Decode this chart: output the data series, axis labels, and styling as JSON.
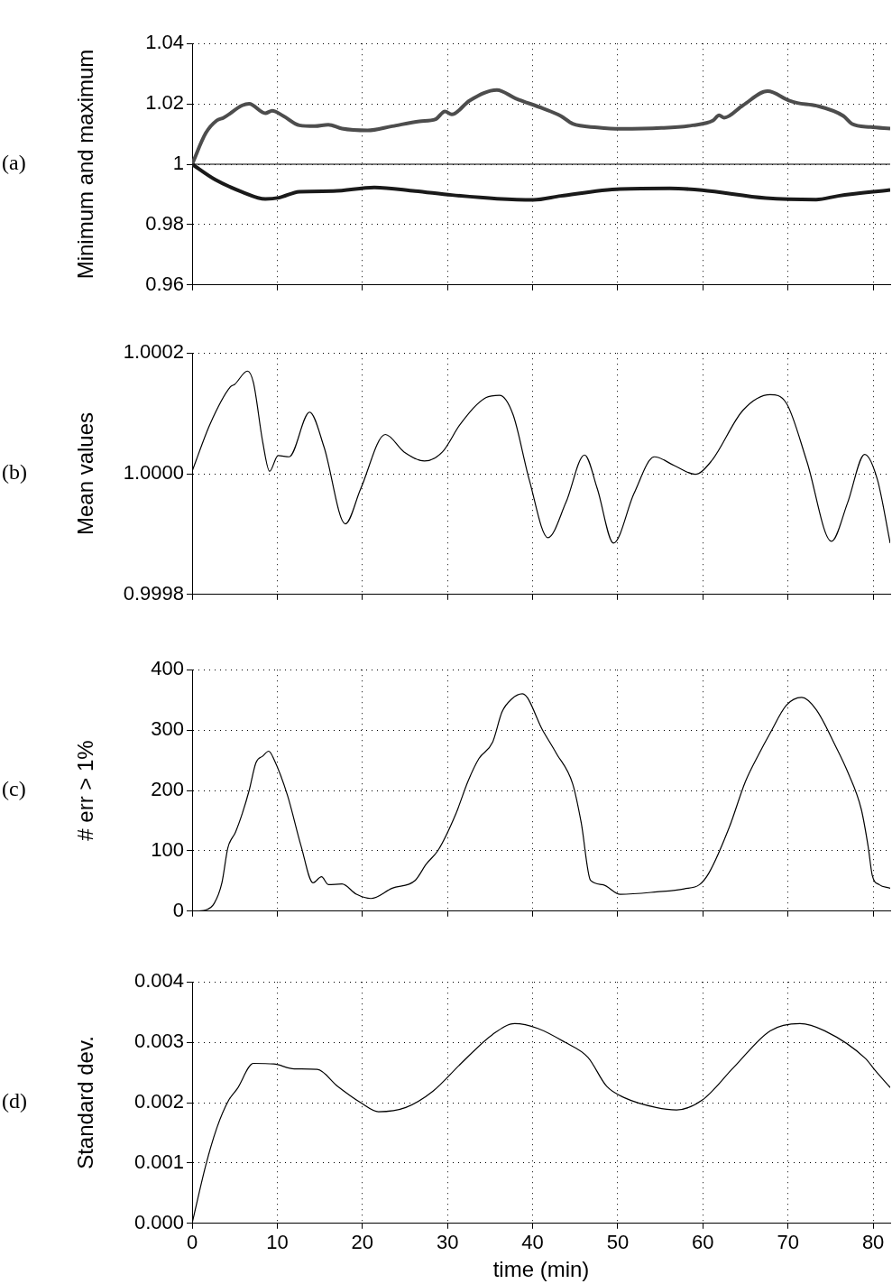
{
  "chart_data": [
    {
      "type": "line",
      "ylabel": "Minimum and maximum",
      "annotations": [
        "(a)"
      ],
      "xlim": [
        0,
        82
      ],
      "xticks": [
        0,
        10,
        20,
        30,
        40,
        50,
        60,
        70,
        80
      ],
      "ylim": [
        0.96,
        1.04
      ],
      "yticks": [
        0.96,
        0.98,
        1,
        1.02,
        1.04
      ],
      "grid": true,
      "tick_labels": "y",
      "ref_lines": [
        {
          "axis": "y",
          "value": 1,
          "color": "#000000"
        }
      ],
      "series": [
        {
          "color": "#4d4d4d",
          "x": [
            0,
            1.6,
            2.9,
            3.7,
            5.9,
            6.7,
            8.6,
            9.4,
            10.7,
            12.6,
            14.4,
            16.0,
            17.6,
            20.6,
            23.5,
            26.7,
            28.6,
            29.7,
            30.5,
            32.6,
            35.8,
            38.0,
            41.2,
            43.3,
            44.7,
            47.6,
            50.3,
            55.1,
            58.8,
            61.2,
            61.9,
            62.5,
            64.7,
            67.6,
            70.1,
            71.1,
            73.3,
            76.5,
            77.5,
            79.7,
            82.0
          ],
          "values": [
            1.0,
            1.0103,
            1.0145,
            1.0154,
            1.0195,
            1.02,
            1.0169,
            1.0177,
            1.016,
            1.0129,
            1.0126,
            1.0131,
            1.0118,
            1.0112,
            1.0126,
            1.0142,
            1.0149,
            1.0175,
            1.0165,
            1.0211,
            1.0246,
            1.0218,
            1.0185,
            1.016,
            1.0134,
            1.0122,
            1.0117,
            1.012,
            1.0129,
            1.0145,
            1.0162,
            1.0154,
            1.0195,
            1.0242,
            1.0211,
            1.0203,
            1.0194,
            1.016,
            1.0134,
            1.0123,
            1.0118
          ]
        },
        {
          "color": "#1a1a1a",
          "x": [
            0,
            2.7,
            5.9,
            8.6,
            10.2,
            12.6,
            16.6,
            21.4,
            26.2,
            30.5,
            35.8,
            40.1,
            43.3,
            50.3,
            56.1,
            59.9,
            67.4,
            73.3,
            75.9,
            82.0
          ],
          "values": [
            1.0,
            0.9949,
            0.9908,
            0.9885,
            0.9889,
            0.9909,
            0.9911,
            0.9923,
            0.9911,
            0.9898,
            0.9886,
            0.9882,
            0.9895,
            0.9918,
            0.992,
            0.9914,
            0.9888,
            0.9883,
            0.9895,
            0.9915
          ]
        }
      ]
    },
    {
      "type": "line",
      "ylabel": "Mean values",
      "annotations": [
        "(b)"
      ],
      "xlim": [
        0,
        82
      ],
      "xticks": [
        0,
        10,
        20,
        30,
        40,
        50,
        60,
        70,
        80
      ],
      "ylim": [
        0.9998,
        1.0002
      ],
      "yticks": [
        0.9998,
        {
          "value": 1,
          "label": "1.0000"
        },
        1.0002
      ],
      "grid": true,
      "tick_labels": "y",
      "series": [
        {
          "color": "#000000",
          "x": [
            0,
            2.1,
            4.5,
            5.0,
            6.5,
            7.2,
            8.3,
            9.1,
            10.1,
            11.4,
            13.8,
            15.5,
            18.0,
            19.8,
            22.7,
            24.9,
            27.3,
            29.4,
            31.5,
            34.5,
            36.1,
            37.7,
            39.6,
            41.8,
            43.9,
            46.1,
            47.6,
            49.5,
            51.9,
            54.3,
            56.7,
            59.1,
            61.0,
            64.7,
            67.9,
            69.8,
            72.2,
            75.1,
            77.0,
            79.0,
            80.5,
            82.0
          ],
          "values": [
            1.000004,
            1.000082,
            1.000144,
            1.000148,
            1.00017,
            1.000151,
            1.000052,
            1.000004,
            1.00003,
            1.000028,
            1.000102,
            1.000044,
            0.999917,
            0.999975,
            1.000065,
            1.000036,
            1.000021,
            1.000036,
            1.000082,
            1.000126,
            1.00013,
            1.000098,
            0.99999,
            0.999894,
            0.999952,
            1.000031,
            0.999975,
            0.999885,
            0.999967,
            1.000028,
            1.000013,
            0.999999,
            1.000021,
            1.000105,
            1.000131,
            1.000117,
            1.000021,
            0.999888,
            0.999952,
            1.000032,
            0.99999,
            0.999885
          ]
        }
      ]
    },
    {
      "type": "line",
      "ylabel": "# err > 1%",
      "annotations": [
        "(c)"
      ],
      "xlim": [
        0,
        82
      ],
      "xticks": [
        0,
        10,
        20,
        30,
        40,
        50,
        60,
        70,
        80
      ],
      "ylim": [
        0,
        400
      ],
      "yticks": [
        0,
        100,
        200,
        300,
        400
      ],
      "grid": true,
      "tick_labels": "y",
      "series": [
        {
          "color": "#000000",
          "x": [
            0,
            1.6,
            2.6,
            3.5,
            4.2,
            5.1,
            5.9,
            6.7,
            7.5,
            8.3,
            9.0,
            9.6,
            11.2,
            12.8,
            14.2,
            15.2,
            16.0,
            17.6,
            19.3,
            21.0,
            23.5,
            26.2,
            27.5,
            28.9,
            31.0,
            32.4,
            33.7,
            35.3,
            36.4,
            37.5,
            38.8,
            41.2,
            42.8,
            44.7,
            45.7,
            46.8,
            48.2,
            50.3,
            54.6,
            57.8,
            59.6,
            60.7,
            63.1,
            65.0,
            66.6,
            67.9,
            69.8,
            71.6,
            73.3,
            75.6,
            77.0,
            78.6,
            79.4,
            79.9,
            80.7,
            82.0
          ],
          "values": [
            0,
            2,
            13,
            47,
            105,
            131,
            162,
            200,
            246,
            257,
            265,
            252,
            192,
            108,
            47,
            57,
            44,
            45,
            28,
            21,
            38,
            51,
            78,
            101,
            162,
            215,
            253,
            280,
            330,
            351,
            360,
            299,
            261,
            211,
            147,
            51,
            44,
            28,
            32,
            37,
            44,
            63,
            139,
            215,
            261,
            295,
            341,
            354,
            334,
            273,
            231,
            169,
            108,
            59,
            44,
            38
          ]
        }
      ]
    },
    {
      "type": "line",
      "ylabel": "Standard dev.",
      "xlabel": "time (min)",
      "annotations": [
        "(d)"
      ],
      "xlim": [
        0,
        82
      ],
      "xticks": [
        0,
        10,
        20,
        30,
        40,
        50,
        60,
        70,
        80
      ],
      "ylim": [
        0,
        0.004
      ],
      "yticks": [
        {
          "value": 0,
          "label": "0.000"
        },
        0.001,
        0.002,
        0.003,
        0.004
      ],
      "grid": true,
      "series": [
        {
          "color": "#000000",
          "x": [
            0,
            1.6,
            2.9,
            4.3,
            5.3,
            7.2,
            9.6,
            12.0,
            14.7,
            17.1,
            19.8,
            21.9,
            25.1,
            28.3,
            31.6,
            35.3,
            37.9,
            40.6,
            43.8,
            46.5,
            48.7,
            50.8,
            54.5,
            56.9,
            59.9,
            63.6,
            67.9,
            71.4,
            74.3,
            79.1,
            80.2,
            82.0
          ],
          "values": [
            0,
            0.00096,
            0.00158,
            0.00204,
            0.00223,
            0.00265,
            0.00264,
            0.00256,
            0.00255,
            0.00227,
            0.002,
            0.00185,
            0.00192,
            0.00219,
            0.00265,
            0.00313,
            0.00331,
            0.00323,
            0.003,
            0.00275,
            0.00227,
            0.00208,
            0.00192,
            0.00188,
            0.00204,
            0.00258,
            0.00319,
            0.00331,
            0.00319,
            0.00273,
            0.00254,
            0.00225
          ]
        }
      ]
    }
  ]
}
